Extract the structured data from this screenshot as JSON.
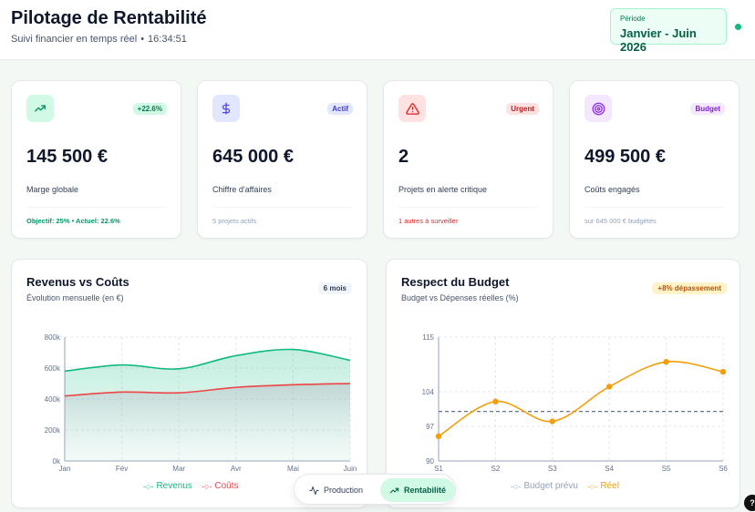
{
  "header": {
    "title": "Pilotage de Rentabilité",
    "subtitle": "Suivi financier en temps réel",
    "time": "16:34:51",
    "period_label": "Période",
    "period_value": "Janvier - Juin 2026"
  },
  "kpis": [
    {
      "value": "145 500 €",
      "label": "Marge globale",
      "badge": "+22.6%",
      "foot": "Objectif: 25% • Actuel: 22.6%",
      "icon": "trending-up-icon"
    },
    {
      "value": "645 000 €",
      "label": "Chiffre d'affaires",
      "badge": "Actif",
      "foot": "5 projets actifs",
      "icon": "dollar-icon"
    },
    {
      "value": "2",
      "label": "Projets en alerte critique",
      "badge": "Urgent",
      "foot": "1 autres à surveiller",
      "icon": "alert-triangle-icon"
    },
    {
      "value": "499 500 €",
      "label": "Coûts engagés",
      "badge": "Budget",
      "foot": "sur 645 000 € budgétés",
      "icon": "target-icon"
    }
  ],
  "revenue_chart": {
    "title": "Revenus vs Coûts",
    "subtitle": "Évolution mensuelle (en €)",
    "badge": "6 mois",
    "legend_revenus": "Revenus",
    "legend_couts": "Coûts"
  },
  "budget_chart": {
    "title": "Respect du Budget",
    "subtitle": "Budget vs Dépenses réelles (%)",
    "badge": "+8% dépassement",
    "legend_budget": "Budget prévu",
    "legend_reel": "Réel"
  },
  "tabs": {
    "production": "Production",
    "rentabilite": "Rentabilité"
  },
  "help": "?",
  "colors": {
    "green": "#10b981",
    "red": "#ef4444",
    "orange": "#f59e0b",
    "slate": "#64748b"
  },
  "chart_data": [
    {
      "type": "area",
      "categories": [
        "Jan",
        "Fév",
        "Mar",
        "Avr",
        "Mai",
        "Juin"
      ],
      "ylim": [
        0,
        800000
      ],
      "yticks": [
        "0k",
        "200k",
        "400k",
        "600k",
        "800k"
      ],
      "series": [
        {
          "name": "Revenus",
          "values": [
            580000,
            620000,
            595000,
            680000,
            720000,
            650000
          ]
        },
        {
          "name": "Coûts",
          "values": [
            420000,
            445000,
            440000,
            475000,
            492000,
            500000
          ]
        }
      ]
    },
    {
      "type": "line",
      "categories": [
        "S1",
        "S2",
        "S3",
        "S4",
        "S5",
        "S6"
      ],
      "ylim": [
        90,
        115
      ],
      "yticks": [
        "90",
        "97",
        "104",
        "115"
      ],
      "series": [
        {
          "name": "Budget prévu",
          "values": [
            100,
            100,
            100,
            100,
            100,
            100
          ]
        },
        {
          "name": "Réel",
          "values": [
            95,
            102,
            98,
            105,
            110,
            108
          ]
        }
      ]
    }
  ]
}
